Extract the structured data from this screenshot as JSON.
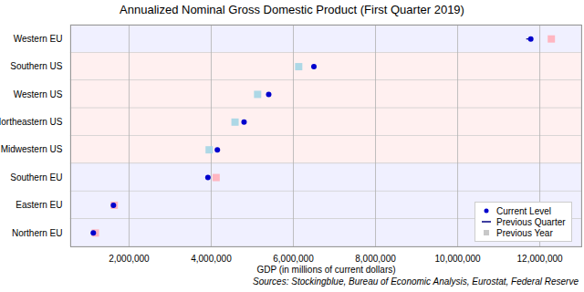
{
  "chart_data": {
    "type": "dot",
    "orientation": "horizontal",
    "title": "Annualized Nominal Gross Domestic Product (First Quarter 2019)",
    "x_label": "GDP (in millions of current dollars)",
    "caption": "Sources: Stockingblue, Bureau of Economic Analysis, Eurostat, Federal Reserve",
    "categories": [
      "Western EU",
      "Southern US",
      "Western US",
      "Northeastern US",
      "Midwestern US",
      "Southern EU",
      "Eastern EU",
      "Northern EU"
    ],
    "colors": [
      "#f0f0ff",
      "#fff0f0",
      "#fff0f0",
      "#fff0f0",
      "#fff0f0",
      "#f0f0ff",
      "#f0f0ff",
      "#f0f0ff"
    ],
    "series": [
      {
        "name": "Current Level",
        "type": "dot",
        "marker": "circle",
        "color": "#0000cd",
        "values": [
          11780000,
          6500000,
          5400000,
          4800000,
          4150000,
          3920000,
          1620000,
          1130000
        ]
      },
      {
        "name": "Previous Quarter",
        "type": "line",
        "line_style": "solid",
        "color": "#000080",
        "values": [
          11680000,
          6470000,
          5370000,
          4780000,
          4130000,
          3940000,
          1610000,
          1140000
        ]
      },
      {
        "name": "Previous Year",
        "type": "dot",
        "marker": "square",
        "color": "#c8c8c8",
        "colors": [
          "#ffb6c1",
          "#add8e6",
          "#add8e6",
          "#add8e6",
          "#add8e6",
          "#ffb6c1",
          "#ffb6c1",
          "#ffb6c1"
        ],
        "values": [
          12280000,
          6130000,
          5130000,
          4580000,
          3950000,
          4120000,
          1640000,
          1180000
        ]
      }
    ],
    "xlim": [
      580000,
      13020000
    ],
    "xticks": [
      {
        "value": 2000000,
        "label": "2,000,000"
      },
      {
        "value": 4000000,
        "label": "4,000,000"
      },
      {
        "value": 6000000,
        "label": "6,000,000"
      },
      {
        "value": 8000000,
        "label": "8,000,000"
      },
      {
        "value": 10000000,
        "label": "10,000,000"
      },
      {
        "value": 12000000,
        "label": "12,000,000"
      }
    ],
    "grid": true,
    "legend": "lower right"
  }
}
